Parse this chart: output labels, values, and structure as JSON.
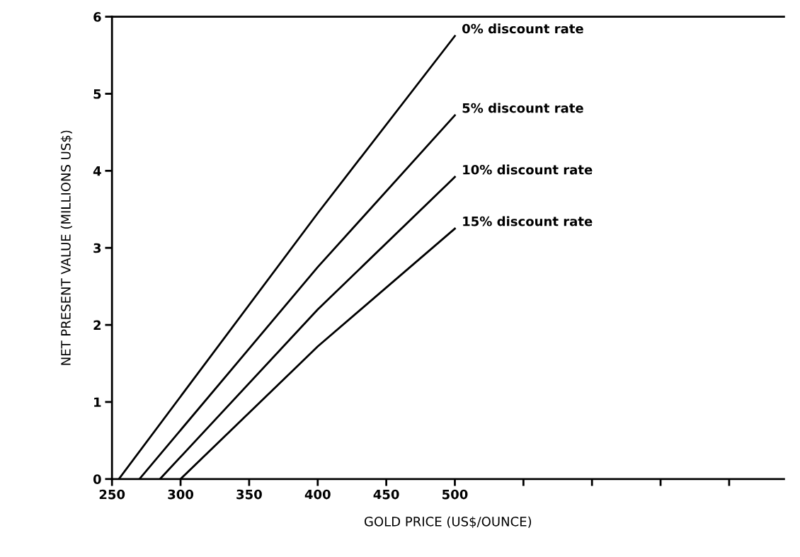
{
  "chart_data": {
    "type": "line",
    "xlabel": "GOLD PRICE (US$/OUNCE)",
    "ylabel": "NET PRESENT VALUE (MILLIONS US$)",
    "xlim": [
      250,
      740
    ],
    "xticks": [
      250,
      300,
      350,
      400,
      450,
      500,
      {
        "value": 550,
        "label": null
      },
      {
        "value": 600,
        "label": null
      },
      {
        "value": 650,
        "label": null
      },
      {
        "value": 700,
        "label": null
      }
    ],
    "ylim": [
      0,
      6
    ],
    "yticks": [
      0,
      1,
      2,
      3,
      4,
      5,
      6
    ],
    "grid": false,
    "legend": false,
    "marker": "none",
    "line_style": "solid",
    "series": [
      {
        "name": "0% discount rate",
        "color": "#000000",
        "x": [
          255,
          400,
          500
        ],
        "values": [
          0,
          3.45,
          5.75
        ]
      },
      {
        "name": "5% discount rate",
        "color": "#000000",
        "x": [
          270,
          400,
          500
        ],
        "values": [
          0,
          2.75,
          4.72
        ]
      },
      {
        "name": "10% discount rate",
        "color": "#000000",
        "x": [
          285,
          400,
          500
        ],
        "values": [
          0,
          2.2,
          3.92
        ]
      },
      {
        "name": "15% discount rate",
        "color": "#000000",
        "x": [
          300,
          400,
          500
        ],
        "values": [
          0,
          1.72,
          3.25
        ]
      }
    ]
  }
}
